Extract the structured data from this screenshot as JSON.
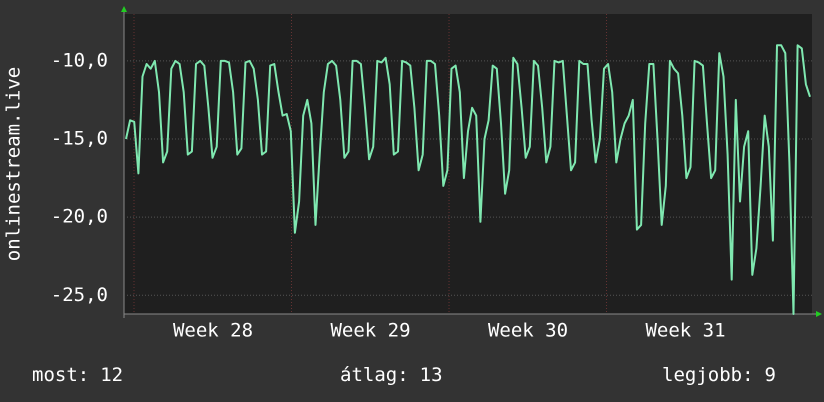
{
  "chart_data": {
    "type": "line",
    "y_label": "onlinestream.live",
    "ylim": [
      -26.2,
      -7.0
    ],
    "yticks": [
      {
        "value": -10,
        "label": "-10,0"
      },
      {
        "value": -15,
        "label": "-15,0"
      },
      {
        "value": -20,
        "label": "-20,0"
      },
      {
        "value": -25,
        "label": "-25,0"
      }
    ],
    "xlim": [
      27.435,
      31.803
    ],
    "xticks": [
      {
        "value": 28,
        "label": "Week 28"
      },
      {
        "value": 29,
        "label": "Week 29"
      },
      {
        "value": 30,
        "label": "Week 30"
      },
      {
        "value": 31,
        "label": "Week 31"
      }
    ],
    "grid": true,
    "series": [
      {
        "color": "#7fe8b0",
        "values": [
          -15,
          -13.8,
          -13.9,
          -17.2,
          -11,
          -10.2,
          -10.5,
          -10,
          -12,
          -16.5,
          -15.8,
          -10.5,
          -10,
          -10.2,
          -12,
          -16,
          -15.8,
          -10.2,
          -10,
          -10.3,
          -13,
          -16.2,
          -15.5,
          -10,
          -10,
          -10.1,
          -12,
          -16,
          -15.6,
          -10.1,
          -10,
          -10.5,
          -12.5,
          -16,
          -15.8,
          -10.3,
          -10.2,
          -12,
          -13.5,
          -13.4,
          -14.5,
          -21,
          -19,
          -13.5,
          -12.5,
          -14,
          -20.5,
          -16,
          -12,
          -10.2,
          -10,
          -10.3,
          -12.5,
          -16.2,
          -15.8,
          -10,
          -10,
          -10.2,
          -13,
          -16.3,
          -15.5,
          -10,
          -10.1,
          -9.8,
          -11.5,
          -16,
          -15.8,
          -10,
          -10.1,
          -10.3,
          -13,
          -17,
          -16,
          -10,
          -10,
          -10.2,
          -13.5,
          -18,
          -17,
          -10.5,
          -10.3,
          -12,
          -17.5,
          -14.5,
          -13,
          -13.5,
          -20.3,
          -15,
          -13.8,
          -10.3,
          -10.5,
          -14,
          -18.5,
          -17,
          -9.8,
          -10.2,
          -13,
          -16.2,
          -15.5,
          -10,
          -10.3,
          -13,
          -16.5,
          -15.5,
          -10,
          -10.1,
          -10,
          -13.5,
          -17,
          -16.5,
          -10,
          -10.2,
          -10.2,
          -13.8,
          -16.5,
          -15,
          -10.5,
          -10.2,
          -12,
          -16.5,
          -15,
          -14,
          -13.5,
          -12.5,
          -20.8,
          -20.5,
          -14,
          -10.2,
          -10.2,
          -15,
          -20.5,
          -18,
          -10,
          -10.5,
          -10.8,
          -13.5,
          -17.5,
          -16.8,
          -10,
          -10.1,
          -10.3,
          -14,
          -17.5,
          -17,
          -9.5,
          -11,
          -16,
          -24,
          -12.5,
          -19,
          -15.5,
          -14.5,
          -23.7,
          -22,
          -18,
          -13.5,
          -15.5,
          -21.5,
          -9,
          -9,
          -9.5,
          -16.5,
          -26.2,
          -9,
          -9.2,
          -11.5,
          -12.3
        ]
      }
    ],
    "stats": [
      {
        "label": "most:",
        "value": 12
      },
      {
        "label": "átlag:",
        "value": 13
      },
      {
        "label": "legjobb:",
        "value": 9
      }
    ]
  }
}
